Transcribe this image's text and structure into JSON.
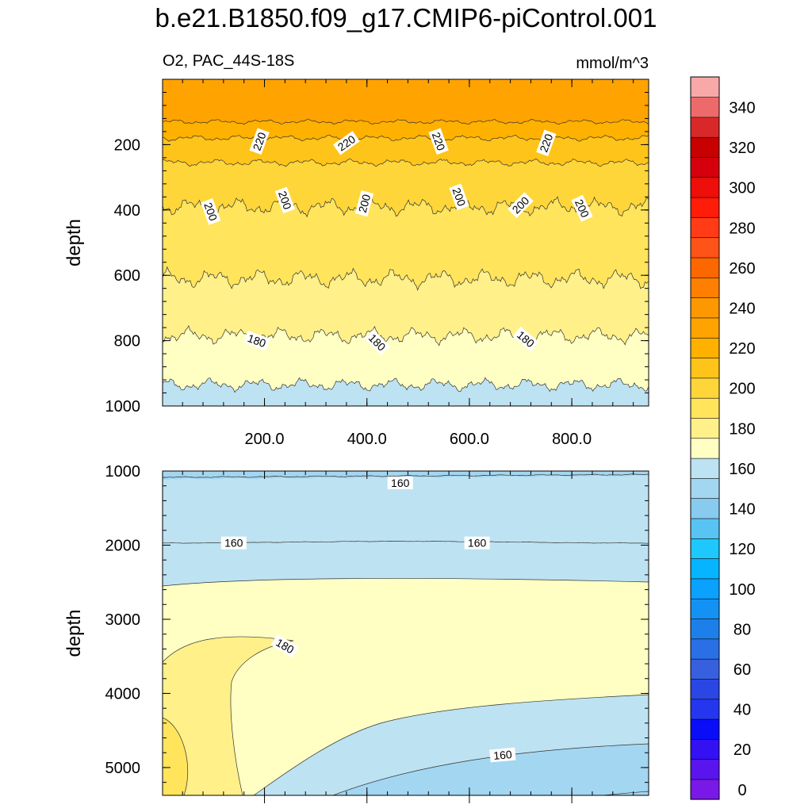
{
  "title": "b.e21.B1850.f09_g17.CMIP6-piControl.001",
  "chart_data": {
    "type": "contour",
    "variable_label": "O2, PAC_44S-18S",
    "units_label": "mmol/m^3",
    "x_tick_labels": [
      "200.0",
      "400.0",
      "600.0",
      "800.0"
    ],
    "x_ticks": [
      200,
      400,
      600,
      800
    ],
    "xlim": [
      1,
      950
    ],
    "panels": [
      {
        "name": "upper",
        "ylabel": "depth",
        "ylim": [
          0,
          1000
        ],
        "y_ticks": [
          200,
          400,
          600,
          800,
          1000
        ],
        "y_tick_labels": [
          "200",
          "400",
          "600",
          "800",
          "1000"
        ],
        "bands": [
          {
            "upper_level": 240,
            "color": "#ffa300",
            "top_depth": 0
          },
          {
            "upper_level": 230,
            "color": "#ffb100",
            "top_depth": 130
          },
          {
            "upper_level": 220,
            "color": "#ffc419",
            "top_depth": 180
          },
          {
            "upper_level": 210,
            "color": "#ffd63a",
            "top_depth": 255
          },
          {
            "upper_level": 200,
            "color": "#ffe45c",
            "top_depth": 390
          },
          {
            "upper_level": 190,
            "color": "#fff08a",
            "top_depth": 610
          },
          {
            "upper_level": 180,
            "color": "#ffffc4",
            "top_depth": 785
          },
          {
            "upper_level": 170,
            "color": "#bde2f2",
            "top_depth": 935
          }
        ],
        "contour_labels": [
          {
            "text": "220",
            "x": 190,
            "depth": 190,
            "angle": -70
          },
          {
            "text": "220",
            "x": 360,
            "depth": 195,
            "angle": -35
          },
          {
            "text": "220",
            "x": 540,
            "depth": 190,
            "angle": 70
          },
          {
            "text": "220",
            "x": 750,
            "depth": 195,
            "angle": -70
          },
          {
            "text": "200",
            "x": 95,
            "depth": 405,
            "angle": 70
          },
          {
            "text": "200",
            "x": 240,
            "depth": 370,
            "angle": 70
          },
          {
            "text": "200",
            "x": 395,
            "depth": 380,
            "angle": -75
          },
          {
            "text": "200",
            "x": 580,
            "depth": 360,
            "angle": 70
          },
          {
            "text": "200",
            "x": 700,
            "depth": 385,
            "angle": -45
          },
          {
            "text": "200",
            "x": 820,
            "depth": 395,
            "angle": 65
          },
          {
            "text": "180",
            "x": 185,
            "depth": 800,
            "angle": 20
          },
          {
            "text": "180",
            "x": 420,
            "depth": 805,
            "angle": 45
          },
          {
            "text": "180",
            "x": 710,
            "depth": 795,
            "angle": 40
          }
        ]
      },
      {
        "name": "lower",
        "ylabel": "depth",
        "ylim": [
          1000,
          5375
        ],
        "y_ticks": [
          1000,
          2000,
          3000,
          4000,
          5000
        ],
        "y_tick_labels": [
          "1000",
          "2000",
          "3000",
          "4000",
          "5000"
        ],
        "contour_labels": [
          {
            "text": "160",
            "x": 465,
            "depth": 1160,
            "angle": 0
          },
          {
            "text": "160",
            "x": 140,
            "depth": 1970,
            "angle": 0
          },
          {
            "text": "160",
            "x": 615,
            "depth": 1970,
            "angle": 0
          },
          {
            "text": "180",
            "x": 240,
            "depth": 3360,
            "angle": 30
          },
          {
            "text": "160",
            "x": 665,
            "depth": 4830,
            "angle": -5
          }
        ]
      }
    ],
    "colorbar": {
      "levels": [
        0,
        10,
        20,
        30,
        40,
        50,
        60,
        70,
        80,
        90,
        100,
        110,
        120,
        130,
        140,
        150,
        160,
        170,
        180,
        190,
        200,
        210,
        220,
        230,
        240,
        250,
        260,
        270,
        280,
        290,
        300,
        310,
        320,
        330,
        340,
        350
      ],
      "labels": [
        "0",
        "20",
        "40",
        "60",
        "80",
        "100",
        "120",
        "140",
        "160",
        "180",
        "200",
        "220",
        "240",
        "260",
        "280",
        "300",
        "320",
        "340"
      ],
      "colors": [
        "#7a18e8",
        "#5a14ee",
        "#3311f2",
        "#0a0df7",
        "#2436ee",
        "#2a47e4",
        "#3760de",
        "#2b6fe6",
        "#1d80ea",
        "#1492f4",
        "#0aa1ff",
        "#07b4ff",
        "#1ec8ff",
        "#58c4f4",
        "#88cbee",
        "#a3d6f0",
        "#bde2f2",
        "#ffffc4",
        "#fff08a",
        "#ffe45c",
        "#ffd63a",
        "#ffc419",
        "#ffb100",
        "#ffa300",
        "#fd9800",
        "#ff8000",
        "#fc6700",
        "#ff5318",
        "#ff3c16",
        "#ff1d0a",
        "#ee0e0a",
        "#d5000b",
        "#c70000",
        "#d9282a",
        "#ee6a6a",
        "#f9a8a8"
      ]
    }
  }
}
